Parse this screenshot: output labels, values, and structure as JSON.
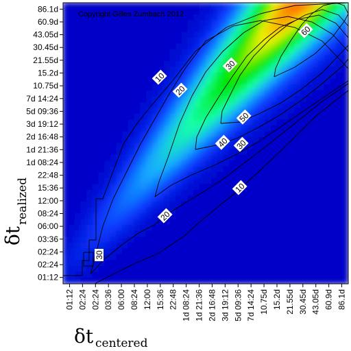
{
  "chart_data": {
    "type": "heatmap",
    "copyright": "Copyright Gilles Zumbach 2012",
    "xlabel": {
      "symbol": "δt",
      "subscript": "centered"
    },
    "ylabel": {
      "symbol": "δt",
      "subscript": "realized"
    },
    "x_tick_labels": [
      "01:12",
      "02:24",
      "02:24",
      "03:36",
      "06:00",
      "08:24",
      "12:00",
      "15:36",
      "22:48",
      "1d 08:24",
      "1d 21:36",
      "2d 16:48",
      "3d 19:12",
      "5d 09:36",
      "7d 14:24",
      "10.75d",
      "15.2d",
      "21.55d",
      "30.45d",
      "43.05d",
      "60.9d",
      "86.1d"
    ],
    "y_tick_labels": [
      "01:12",
      "02:24",
      "02:24",
      "03:36",
      "06:00",
      "08:24",
      "12:00",
      "15:36",
      "22:48",
      "1d 08:24",
      "1d 21:36",
      "2d 16:48",
      "3d 19:12",
      "5d 09:36",
      "7d 14:24",
      "10.75d",
      "15.2d",
      "21.55d",
      "30.45d",
      "43.05d",
      "60.9d",
      "86.1d"
    ],
    "contour_levels": [
      10,
      20,
      30,
      40,
      50,
      60
    ],
    "contour_labels": [
      "10",
      "20",
      "30",
      "40",
      "50",
      "60",
      "10",
      "20",
      "30",
      "30"
    ],
    "value_range": [
      0,
      70
    ],
    "colormap": [
      "#0000c8",
      "#0a3cff",
      "#14aaff",
      "#14ffaa",
      "#00e600",
      "#f0f000",
      "#ff6400",
      "#dc0000"
    ]
  }
}
